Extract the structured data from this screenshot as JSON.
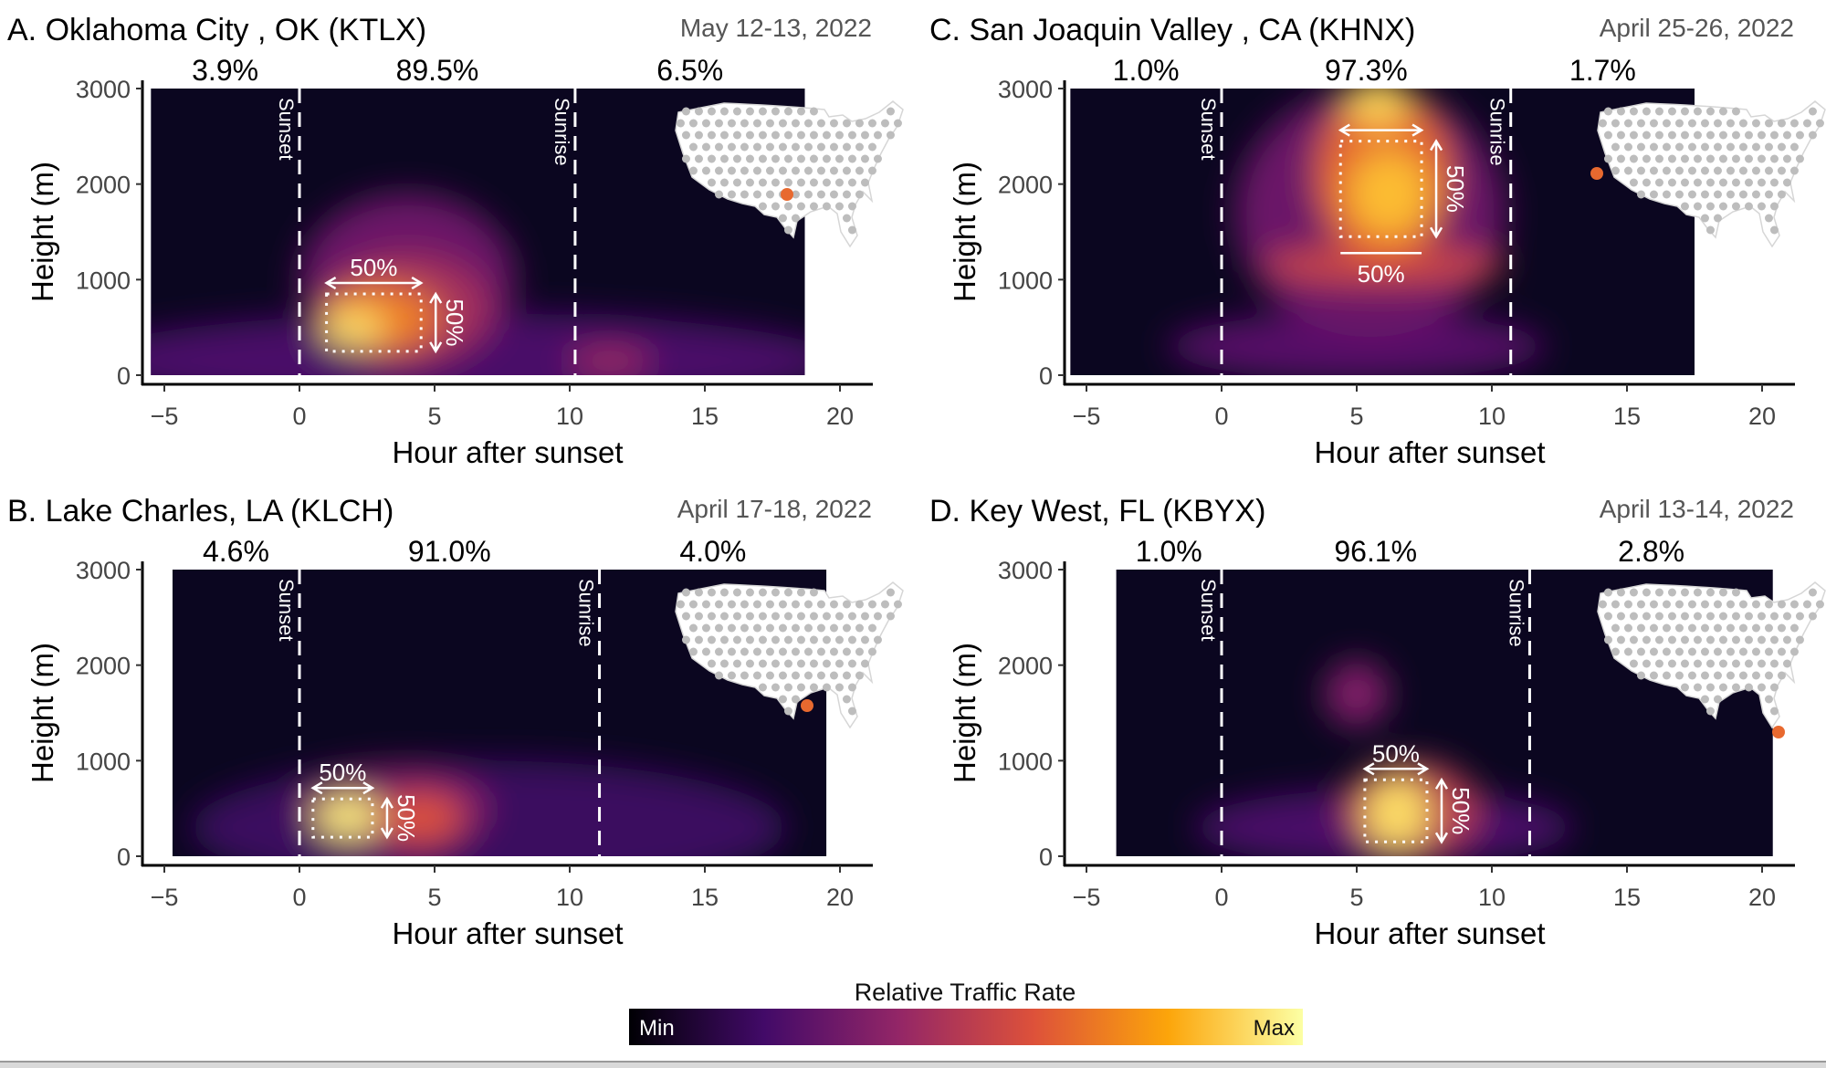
{
  "legend": {
    "title": "Relative Traffic Rate",
    "min_label": "Min",
    "max_label": "Max",
    "stops": [
      "#000004",
      "#420a68",
      "#932667",
      "#dd513a",
      "#fca50a",
      "#fcffa4"
    ]
  },
  "chart_data": [
    {
      "type": "heatmap",
      "title": "A. Oklahoma City , OK (KTLX)",
      "date": "May 12-13, 2022",
      "xlabel": "Hour after sunset",
      "ylabel": "Height (m)",
      "xticks": [
        -5,
        0,
        5,
        10,
        15,
        20
      ],
      "yticks": [
        0,
        1000,
        2000,
        3000
      ],
      "xlim": [
        -5.5,
        18.7
      ],
      "ylim": [
        0,
        3000
      ],
      "sunset_label": "Sunset",
      "sunset_hour": 0,
      "sunrise_label": "Sunrise",
      "sunrise_hour": 10.2,
      "period_percents": [
        "3.9%",
        "89.5%",
        "6.5%"
      ],
      "box": {
        "x": [
          1.0,
          4.5
        ],
        "y": [
          250,
          850
        ],
        "x_label": "50%",
        "y_label": "50%"
      },
      "map_dot_color": "#e8692f",
      "hotspots": [
        {
          "hour": 6,
          "height": 150,
          "dh": 14,
          "dm": 500,
          "v": 0.22
        },
        {
          "hour": 4,
          "height": 1000,
          "dh": 4,
          "dm": 900,
          "v": 0.3
        },
        {
          "hour": 4,
          "height": 700,
          "dh": 3,
          "dm": 550,
          "v": 0.45
        },
        {
          "hour": 3,
          "height": 600,
          "dh": 2.2,
          "dm": 350,
          "v": 0.7
        },
        {
          "hour": 2,
          "height": 500,
          "dh": 1.2,
          "dm": 200,
          "v": 0.92
        },
        {
          "hour": 11.5,
          "height": 150,
          "dh": 1.5,
          "dm": 150,
          "v": 0.42
        }
      ]
    },
    {
      "type": "heatmap",
      "title": "C. San Joaquin Valley , CA (KHNX)",
      "date": "April 25-26, 2022",
      "xlabel": "Hour after sunset",
      "ylabel": "Height (m)",
      "xticks": [
        -5,
        0,
        5,
        10,
        15,
        20
      ],
      "yticks": [
        0,
        1000,
        2000,
        3000
      ],
      "xlim": [
        -5.6,
        17.5
      ],
      "ylim": [
        0,
        3000
      ],
      "sunset_label": "Sunset",
      "sunset_hour": 0,
      "sunrise_label": "Sunrise",
      "sunrise_hour": 10.7,
      "period_percents": [
        "1.0%",
        "97.3%",
        "1.7%"
      ],
      "box": {
        "x": [
          4.4,
          7.4
        ],
        "y": [
          1450,
          2450
        ],
        "x_label": "50%",
        "y_label": "50%"
      },
      "map_dot_color": "#e8692f",
      "hotspots": [
        {
          "hour": 5,
          "height": 300,
          "dh": 7,
          "dm": 350,
          "v": 0.25
        },
        {
          "hour": 5.5,
          "height": 1700,
          "dh": 5,
          "dm": 1300,
          "v": 0.3
        },
        {
          "hour": 6,
          "height": 1150,
          "dh": 4.5,
          "dm": 200,
          "v": 0.55
        },
        {
          "hour": 6,
          "height": 2100,
          "dh": 2.5,
          "dm": 900,
          "v": 0.65
        },
        {
          "hour": 6.2,
          "height": 1900,
          "dh": 1.5,
          "dm": 450,
          "v": 0.85
        },
        {
          "hour": 5.8,
          "height": 2850,
          "dh": 1.2,
          "dm": 250,
          "v": 0.9
        }
      ]
    },
    {
      "type": "heatmap",
      "title": "B. Lake Charles, LA (KLCH)",
      "date": "April 17-18, 2022",
      "xlabel": "Hour after sunset",
      "ylabel": "Height (m)",
      "xticks": [
        -5,
        0,
        5,
        10,
        15,
        20
      ],
      "yticks": [
        0,
        1000,
        2000,
        3000
      ],
      "xlim": [
        -4.7,
        19.5
      ],
      "ylim": [
        0,
        3000
      ],
      "sunset_label": "Sunset",
      "sunset_hour": 0,
      "sunrise_label": "Sunrise",
      "sunrise_hour": 11.1,
      "period_percents": [
        "4.6%",
        "91.0%",
        "4.0%"
      ],
      "box": {
        "x": [
          0.5,
          2.7
        ],
        "y": [
          200,
          600
        ],
        "x_label": "50%",
        "y_label": "50%"
      },
      "map_dot_color": "#e8692f",
      "hotspots": [
        {
          "hour": 7,
          "height": 300,
          "dh": 11,
          "dm": 700,
          "v": 0.18
        },
        {
          "hour": 3.5,
          "height": 500,
          "dh": 3.5,
          "dm": 450,
          "v": 0.35
        },
        {
          "hour": 4.5,
          "height": 400,
          "dh": 1.5,
          "dm": 250,
          "v": 0.6
        },
        {
          "hour": 1.8,
          "height": 420,
          "dh": 1.2,
          "dm": 220,
          "v": 0.95
        }
      ]
    },
    {
      "type": "heatmap",
      "title": "D. Key West, FL (KBYX)",
      "date": "April 13-14, 2022",
      "xlabel": "Hour after sunset",
      "ylabel": "Height (m)",
      "xticks": [
        -5,
        0,
        5,
        10,
        15,
        20
      ],
      "yticks": [
        0,
        1000,
        2000,
        3000
      ],
      "xlim": [
        -3.9,
        20.4
      ],
      "ylim": [
        0,
        3000
      ],
      "sunset_label": "Sunset",
      "sunset_hour": 0,
      "sunrise_label": "Sunrise",
      "sunrise_hour": 11.4,
      "period_percents": [
        "1.0%",
        "96.1%",
        "2.8%"
      ],
      "box": {
        "x": [
          5.3,
          7.6
        ],
        "y": [
          150,
          800
        ],
        "x_label": "50%",
        "y_label": "50%"
      },
      "map_dot_color": "#e8692f",
      "hotspots": [
        {
          "hour": 6,
          "height": 300,
          "dh": 7,
          "dm": 400,
          "v": 0.22
        },
        {
          "hour": 5,
          "height": 1700,
          "dh": 1.2,
          "dm": 350,
          "v": 0.35
        },
        {
          "hour": 7,
          "height": 500,
          "dh": 2.5,
          "dm": 500,
          "v": 0.5
        },
        {
          "hour": 6.5,
          "height": 450,
          "dh": 1.2,
          "dm": 380,
          "v": 0.92
        }
      ]
    }
  ]
}
